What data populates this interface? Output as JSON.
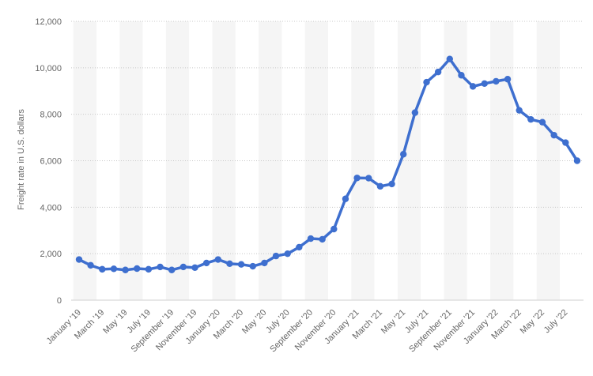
{
  "chart_data": {
    "type": "line",
    "title": "",
    "xlabel": "",
    "ylabel": "Freight rate in U.S. dollars",
    "ylim": [
      0,
      12000
    ],
    "yticks": [
      0,
      2000,
      4000,
      6000,
      8000,
      10000,
      12000
    ],
    "ytick_labels": [
      "0",
      "2,000",
      "4,000",
      "6,000",
      "8,000",
      "10,000",
      "12,000"
    ],
    "grid": "horizontal dotted",
    "legend": "none",
    "color": "#3e6fcf",
    "x": [
      "Jan 2019",
      "Feb 2019",
      "Mar 2019",
      "Apr 2019",
      "May 2019",
      "Jun 2019",
      "Jul 2019",
      "Aug 2019",
      "Sep 2019",
      "Oct 2019",
      "Nov 2019",
      "Dec 2019",
      "Jan 2020",
      "Feb 2020",
      "Mar 2020",
      "Apr 2020",
      "May 2020",
      "Jun 2020",
      "Jul 2020",
      "Aug 2020",
      "Sep 2020",
      "Oct 2020",
      "Nov 2020",
      "Dec 2020",
      "Jan 2021",
      "Feb 2021",
      "Mar 2021",
      "Apr 2021",
      "May 2021",
      "Jun 2021",
      "Jul 2021",
      "Aug 2021",
      "Sep 2021",
      "Oct 2021",
      "Nov 2021",
      "Dec 2021",
      "Jan 2022",
      "Feb 2022",
      "Mar 2022",
      "Apr 2022",
      "May 2022",
      "Jun 2022",
      "Jul 2022",
      "Aug 2022"
    ],
    "tick_labels": [
      "January '19",
      "March '19",
      "May '19",
      "July '19",
      "September '19",
      "November '19",
      "January '20",
      "March '20",
      "May '20",
      "July '20",
      "September '20",
      "November '20",
      "January '21",
      "March '21",
      "May '21",
      "July '21",
      "September '21",
      "November '21",
      "January '22",
      "March '22",
      "May '22",
      "July '22"
    ],
    "values": [
      1750,
      1500,
      1330,
      1350,
      1300,
      1360,
      1330,
      1430,
      1300,
      1430,
      1400,
      1600,
      1750,
      1570,
      1540,
      1460,
      1600,
      1900,
      2000,
      2280,
      2650,
      2620,
      3060,
      4360,
      5260,
      5250,
      4900,
      5000,
      6280,
      8070,
      9380,
      9820,
      10380,
      9680,
      9200,
      9320,
      9420,
      9510,
      8170,
      7780,
      7660,
      7100,
      6780,
      6000
    ]
  }
}
